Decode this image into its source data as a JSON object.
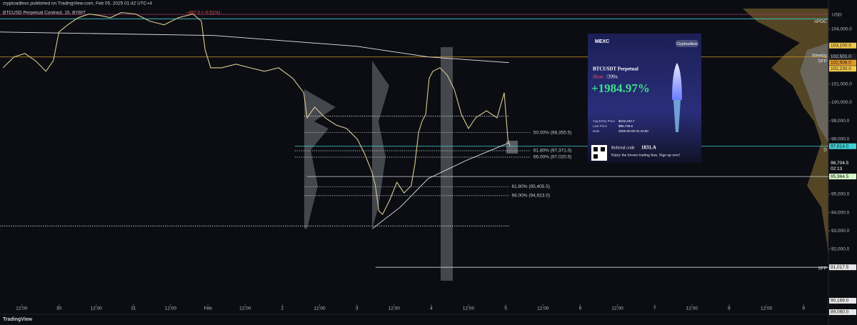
{
  "header": {
    "published": "cryptoadless published on TradingView.com, Feb 05, 2025 01:42 UTC+4",
    "symbol": "BTCUSD Perpetual Contract, 15, BYBIT",
    "change": "−497.0 (−0.51%)"
  },
  "footer": {
    "brand": "TradingView"
  },
  "chart_data": {
    "type": "line",
    "currency": "USD",
    "xlim": [
      -19,
      248
    ],
    "ylim": [
      89000,
      105000
    ],
    "xticks": [
      {
        "value": -12,
        "label": "12:00"
      },
      {
        "value": 0,
        "label": "30"
      },
      {
        "value": 12,
        "label": "12:00"
      },
      {
        "value": 24,
        "label": "31"
      },
      {
        "value": 36,
        "label": "12:00"
      },
      {
        "value": 48,
        "label": "Feb"
      },
      {
        "value": 60,
        "label": "12:00"
      },
      {
        "value": 72,
        "label": "2"
      },
      {
        "value": 84,
        "label": "12:00"
      },
      {
        "value": 96,
        "label": "3"
      },
      {
        "value": 108,
        "label": "12:00"
      },
      {
        "value": 120,
        "label": "4"
      },
      {
        "value": 132,
        "label": "12:00"
      },
      {
        "value": 144,
        "label": "5"
      },
      {
        "value": 156,
        "label": "12:00"
      },
      {
        "value": 168,
        "label": "6"
      },
      {
        "value": 180,
        "label": "12:00"
      },
      {
        "value": 192,
        "label": "7"
      },
      {
        "value": 204,
        "label": "12:00"
      },
      {
        "value": 216,
        "label": "8"
      },
      {
        "value": 228,
        "label": "12:00"
      },
      {
        "value": 240,
        "label": "9"
      }
    ],
    "yticks": [
      {
        "value": 104000,
        "label": "104,000.0"
      },
      {
        "value": 101000,
        "label": "101,000.0"
      },
      {
        "value": 100000,
        "label": "100,000.0"
      },
      {
        "value": 99000,
        "label": "99,000.0"
      },
      {
        "value": 98000,
        "label": "98,000.0"
      },
      {
        "value": 95000,
        "label": "95,000.0"
      },
      {
        "value": 94000,
        "label": "94,000.0"
      },
      {
        "value": 93000,
        "label": "93,000.0"
      },
      {
        "value": 92000,
        "label": "92,000.0"
      }
    ],
    "series": [
      {
        "color": "#d9c98f",
        "x": [
          -18,
          -14.5,
          -11,
          -7.6,
          -4.2,
          -1.8,
          0,
          2.8,
          6.2,
          9.7,
          13.2,
          16.6,
          20.1,
          24.7,
          29.3,
          33.9,
          38.5,
          43.2,
          45.9,
          47.1,
          48.9,
          52.4,
          57,
          61.6,
          66.2,
          70.8,
          75.4,
          78.9,
          80,
          82.4,
          85.8,
          89.3,
          92.7,
          96.2,
          98.5,
          100.8,
          102,
          103.1,
          104.3,
          106.6,
          108.9,
          111.2,
          113.5,
          114.7,
          115.9,
          117,
          118.2,
          119.3,
          120.5,
          122.8,
          125.1,
          127.4,
          129.7,
          132,
          134.3,
          137.8,
          141.2,
          143.5,
          144.7,
          145.4
        ],
        "values": [
          101890,
          102480,
          102670,
          102280,
          101700,
          102280,
          103840,
          104230,
          104620,
          104820,
          104740,
          104620,
          104900,
          104820,
          104430,
          104230,
          104620,
          104820,
          104430,
          102870,
          101890,
          101890,
          102090,
          101890,
          101700,
          101890,
          101310,
          100530,
          99160,
          99750,
          99160,
          98770,
          98580,
          97990,
          97210,
          96240,
          95460,
          94090,
          93900,
          94680,
          95650,
          95070,
          95460,
          96630,
          98380,
          98970,
          99360,
          101310,
          101700,
          101890,
          101500,
          100720,
          99360,
          98580,
          99160,
          99550,
          99160,
          100530,
          97990,
          97600
        ]
      },
      {
        "color": "#e6e6e6",
        "x": [
          -19,
          50,
          96,
          119,
          145
        ],
        "values": [
          103840,
          103650,
          103060,
          102480,
          102170
        ]
      },
      {
        "color": "#e6e6e6",
        "x": [
          101,
          110,
          119,
          131,
          145
        ],
        "values": [
          93120,
          94290,
          95850,
          96820,
          97800
        ]
      }
    ],
    "levels": [
      {
        "price": 104800,
        "color": "#b0306a",
        "x": [
          -19,
          248
        ]
      },
      {
        "price": 104560,
        "color": "#3fd0d6",
        "x": [
          -19,
          248
        ]
      },
      {
        "price": 102480,
        "color": "#d79a2b",
        "x": [
          -19,
          248
        ]
      },
      {
        "price": 97614,
        "color": "#3fd0d6",
        "x": [
          76,
          248
        ]
      },
      {
        "price": 95964.5,
        "color": "#cfd3da",
        "x": [
          80,
          248
        ]
      },
      {
        "price": 91017.5,
        "color": "#cfd3da",
        "x": [
          102,
          248
        ]
      },
      {
        "price": 99250,
        "color": "#cfd3da",
        "x": [
          79,
          145
        ],
        "dash": true
      },
      {
        "price": 93270,
        "color": "#cfd3da",
        "x": [
          -19,
          145
        ],
        "dash": true
      }
    ],
    "fibs": [
      {
        "price": 98355.5,
        "label": "50.00% (98,355.5)",
        "x": [
          79,
          152
        ]
      },
      {
        "price": 97371.0,
        "label": "61.80% (97,371.0)",
        "x": [
          76,
          152
        ]
      },
      {
        "price": 97020.5,
        "label": "66.00% (97,020.5)",
        "x": [
          76,
          152
        ]
      },
      {
        "price": 95405.5,
        "label": "61.80% (95,405.5)",
        "x": [
          79,
          145
        ]
      },
      {
        "price": 94923.0,
        "label": "66.00% (94,923.0)",
        "x": [
          79,
          145
        ]
      }
    ],
    "price_tags": [
      {
        "price": 103100,
        "label": "103,100.0",
        "bg": "#f2c94c",
        "fg": "#111"
      },
      {
        "price": 102501,
        "label": "102,501.0",
        "bg": "#1a1d24",
        "fg": "#cfd3da"
      },
      {
        "price": 102506,
        "label": "102,506.0",
        "bg": "#e09a2a",
        "fg": "#111"
      },
      {
        "price": 102230,
        "label": "102,230.0",
        "bg": "#f2c94c",
        "fg": "#111"
      },
      {
        "price": 97614,
        "label": "97,614.0",
        "bg": "#3fd0d6",
        "fg": "#111"
      },
      {
        "price": 96704.5,
        "label": "96,704.5",
        "bg": "#0b0d12",
        "fg": "#ffffff",
        "sub": "02:13"
      },
      {
        "price": 95964.5,
        "label": "95,964.5",
        "bg": "#d8f5c8",
        "fg": "#111"
      },
      {
        "price": 91017.5,
        "label": "91,017.5",
        "bg": "#e8e8e8",
        "fg": "#111"
      }
    ],
    "pane_tags": [
      "90,169.0",
      "89,060.0"
    ],
    "level_notes": [
      {
        "price": 104400,
        "label": "nPOC"
      },
      {
        "price": 102560,
        "label": "Weekly"
      },
      {
        "price": 102250,
        "label": "SFP"
      },
      {
        "price": 97410,
        "label": "D"
      },
      {
        "price": 90960,
        "label": "SFP"
      }
    ]
  },
  "ad_card": {
    "brand": "MEXC",
    "user": "Cryptoadless",
    "contract": "BTCUSDT Perpetual",
    "side": "Short",
    "leverage": "/399x",
    "pnl": "+1984.97%",
    "rows": [
      [
        "Avg Entry Price",
        "$102,230.7"
      ],
      [
        "Last Price",
        "$96,738.6"
      ],
      [
        "Date",
        "2025-02-05 01:42:50"
      ]
    ],
    "referral_label": "Referral code",
    "referral_code": "1831.A",
    "tagline": "Enjoy the lowest trading fees. Sign up now!"
  }
}
